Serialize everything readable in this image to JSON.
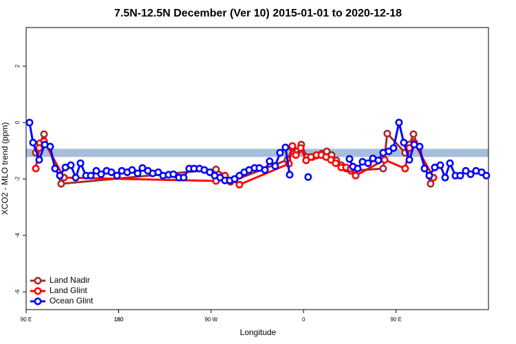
{
  "chart_data": {
    "type": "line",
    "title": "7.5N-12.5N December (Ver 10)   2015-01-01 to 2020-12-18",
    "x_label": "Longitude",
    "y_label": "XCO2 - MLO trend (ppm)",
    "xlim": [
      90,
      540
    ],
    "xticks": [
      {
        "value": 90,
        "label": "90 E"
      },
      180,
      {
        "value": 270,
        "label": "90 W"
      },
      {
        "value": 360,
        "label": "0"
      },
      {
        "value": 450,
        "label": "90 E"
      },
      180.0
    ],
    "ylim": [
      -6.63,
      3.37
    ],
    "yticks": [
      -6,
      -4,
      -2,
      0,
      2
    ],
    "reference_band": [
      -1.22,
      -0.93
    ],
    "reference_band_color": "#a7bedb",
    "legend": "bottom-left",
    "series": [
      {
        "name": "Land Nadir",
        "color": "#a52a2a",
        "x": [
          99.4,
          103.4,
          107.4,
          124.1,
          274.8,
          283.5,
          288.9,
          344.4,
          349.1,
          353.8,
          357.8,
          363.2,
          368.6,
          372.6,
          377.9,
          382.6,
          387.3,
          392,
          396.7,
          401.4,
          406,
          437.5,
          441.5,
          458.9,
          463,
          467,
          483.7
        ],
        "values": [
          -1.07,
          -0.73,
          -0.41,
          -2.17,
          -1.66,
          -1.88,
          -2.1,
          -1.32,
          -0.9,
          -1.02,
          -0.78,
          -1.22,
          -1.22,
          -1.17,
          -1.1,
          -1.02,
          -1.15,
          -1.34,
          -1.51,
          -1.63,
          -1.71,
          -1.63,
          -0.39,
          -1.07,
          -0.78,
          -0.41,
          -2.17
        ]
      },
      {
        "name": "Land Glint",
        "color": "#ff0000",
        "x": [
          99.4,
          102.7,
          107.4,
          126.8,
          274.8,
          283.5,
          297.6,
          345.8,
          349.1,
          352.5,
          357.2,
          362.5,
          367.2,
          372.6,
          377.3,
          381.9,
          386.6,
          391.3,
          396.7,
          401.4,
          406,
          410.7,
          438.9,
          458.9,
          463,
          467.7,
          486.4
        ],
        "values": [
          -1.63,
          -0.9,
          -0.66,
          -1.95,
          -2.07,
          -1.88,
          -2.2,
          -1.46,
          -0.83,
          -1.15,
          -0.9,
          -1.34,
          -1.22,
          -1.15,
          -1.15,
          -1.22,
          -1.32,
          -1.44,
          -1.59,
          -1.59,
          -1.63,
          -1.88,
          -1.32,
          -1.63,
          -0.9,
          -0.71,
          -1.95
        ]
      },
      {
        "name": "Ocean Glint",
        "color": "#0000ff",
        "x": [
          93.3,
          96.7,
          102.7,
          108.1,
          113.4,
          118.1,
          122.8,
          128.2,
          133.5,
          138.2,
          142.9,
          148.3,
          152.9,
          158.3,
          163,
          168.3,
          173,
          178.4,
          183.1,
          188.4,
          193.1,
          198.5,
          203.2,
          208.5,
          213.2,
          218.6,
          223.3,
          228.6,
          233.3,
          238.7,
          243.3,
          248.7,
          253.4,
          258.7,
          263.4,
          268.8,
          273.5,
          278.8,
          283.5,
          288.2,
          292.9,
          297.6,
          302.3,
          307,
          312.3,
          317,
          322.4,
          327,
          332.4,
          337.1,
          342.4,
          346.5,
          null,
          364.5,
          null,
          404.7,
          408.1,
          412.7,
          417.4,
          422.8,
          427.5,
          432.8,
          437.5,
          442.9,
          447.6,
          452.9,
          457.6,
          463,
          467.7,
          473,
          477.7,
          482.4,
          487.7,
          493.1,
          497.8,
          502.5,
          507.8,
          512.5,
          517.9,
          522.6,
          527.9,
          533.3,
          537.9
        ],
        "values": [
          0,
          -0.71,
          -1.32,
          -0.78,
          -0.85,
          -1.63,
          -1.88,
          -1.59,
          -1.51,
          -1.95,
          -1.44,
          -1.88,
          -1.88,
          -1.71,
          -1.83,
          -1.71,
          -1.76,
          -1.88,
          -1.71,
          -1.76,
          -1.68,
          -1.8,
          -1.61,
          -1.71,
          -1.8,
          -1.76,
          -1.88,
          -1.85,
          -1.83,
          -1.95,
          -1.95,
          -1.63,
          -1.63,
          -1.63,
          -1.68,
          -1.76,
          -1.88,
          -1.95,
          -2.05,
          -2.05,
          -2.0,
          -1.88,
          -1.76,
          -1.68,
          -1.61,
          -1.61,
          -1.68,
          -1.37,
          -1.54,
          -1.07,
          -0.88,
          -1.85,
          null,
          -1.93,
          null,
          -1.29,
          -1.56,
          -1.63,
          -1.39,
          -1.44,
          -1.27,
          -1.34,
          -1.07,
          -1.02,
          -0.9,
          0,
          -0.71,
          -1.32,
          -0.78,
          -0.85,
          -1.63,
          -1.88,
          -1.59,
          -1.51,
          -1.95,
          -1.44,
          -1.88,
          -1.88,
          -1.71,
          -1.83,
          -1.71,
          -1.76,
          -1.88
        ]
      }
    ]
  }
}
